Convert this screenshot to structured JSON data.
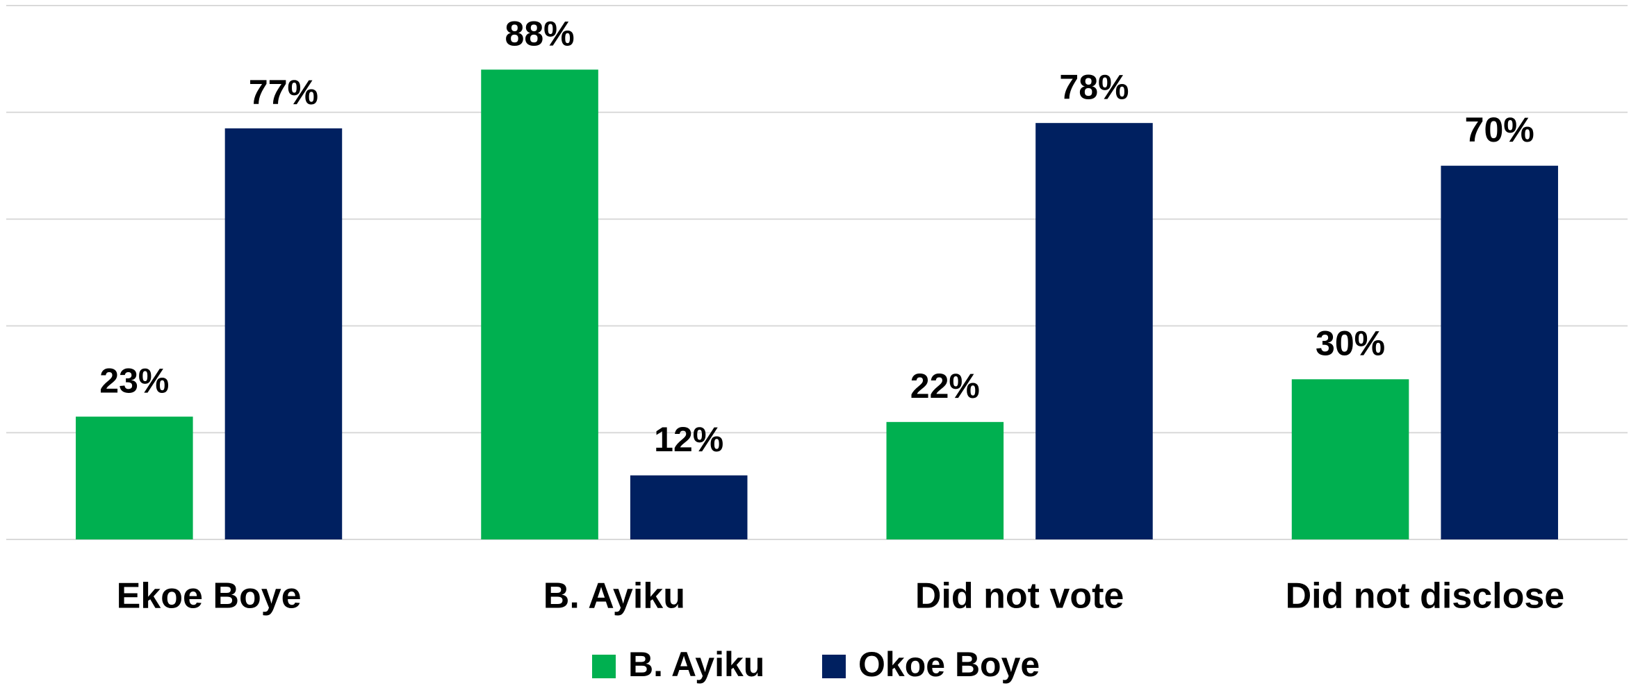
{
  "chart_data": {
    "type": "bar",
    "categories": [
      "Ekoe Boye",
      "B. Ayiku",
      "Did not vote",
      "Did not disclose"
    ],
    "series": [
      {
        "name": "B. Ayiku",
        "color": "#00b050",
        "values": [
          23,
          88,
          22,
          30
        ],
        "value_labels": [
          "23%",
          "88%",
          "22%",
          "30%"
        ]
      },
      {
        "name": "Okoe Boye",
        "color": "#002060",
        "values": [
          77,
          12,
          78,
          70
        ],
        "value_labels": [
          "77%",
          "12%",
          "78%",
          "70%"
        ]
      }
    ],
    "ylim": [
      0,
      100
    ],
    "yticks": [
      0,
      20,
      40,
      60,
      80,
      100
    ],
    "grid": true,
    "legend": "bottom"
  }
}
